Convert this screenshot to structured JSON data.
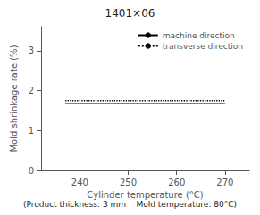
{
  "chart_data": {
    "type": "line",
    "title": "1401×06",
    "subtitle": "(Product thickness: 3 mm    Mold temperature: 80°C)",
    "xlabel": "Cylinder temperature (°C)",
    "ylabel": "Mold shrinkage rate (%)",
    "series": [
      {
        "name": "machine direction",
        "color": "#000000",
        "line_style": "solid",
        "x": [
          237,
          270
        ],
        "values": [
          1.68,
          1.68
        ]
      },
      {
        "name": "transverse direction",
        "color": "#000000",
        "line_style": "dotted",
        "x": [
          237,
          270
        ],
        "values": [
          1.75,
          1.75
        ]
      }
    ],
    "xlim": [
      232,
      275
    ],
    "ylim": [
      0,
      3.6
    ],
    "xticks": [
      240,
      250,
      260,
      270
    ],
    "yticks": [
      0,
      1,
      2,
      3
    ],
    "grid": false,
    "legend": "upper right"
  }
}
